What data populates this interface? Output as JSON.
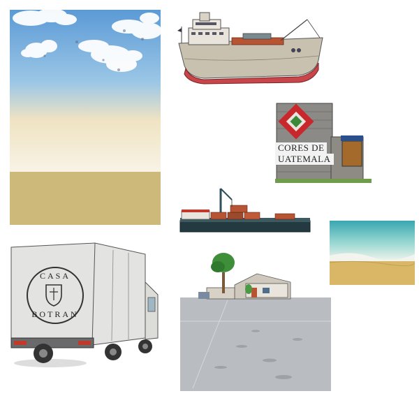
{
  "sign": {
    "line1": "CORES DE",
    "line2": "UATEMALA"
  },
  "truck_logo": {
    "top": "CASA",
    "bottom": "BOTRAN"
  },
  "colors": {
    "sky_top": "#5d9fd8",
    "sky_bottom": "#f6e9c5",
    "sand": "#cdb97a",
    "sea": "#69c6c9",
    "hull": "#c9c1b0",
    "hull_bottom": "#c8454a",
    "barge_hull": "#233b40",
    "container_red": "#b65434",
    "lot_gray": "#b9bcc0",
    "tree_green": "#3f8f3a"
  },
  "icons": {
    "truck_emblem": "shield-crest-icon"
  }
}
